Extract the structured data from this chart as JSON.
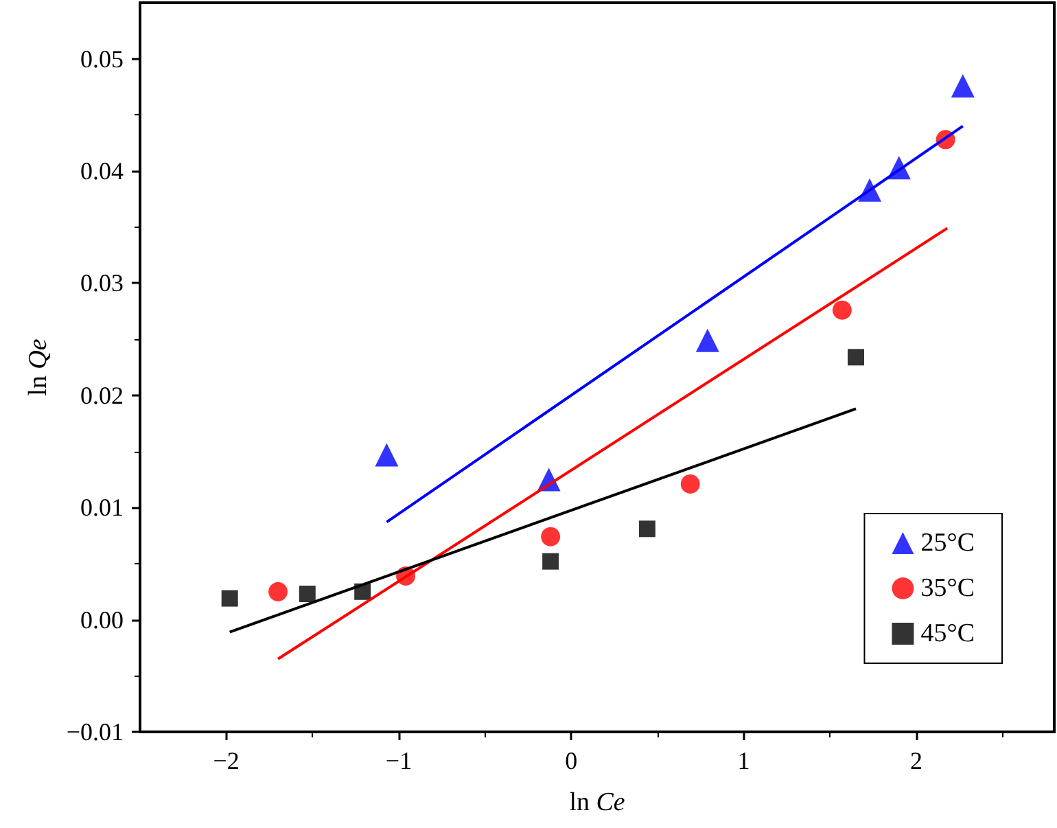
{
  "chart_data": {
    "type": "scatter",
    "xlabel": "ln Ce",
    "ylabel": "ln Qe",
    "xlim": [
      -2.5,
      2.8
    ],
    "xticks": [
      {
        "value": -2,
        "label": "−2"
      },
      {
        "value": -1,
        "label": "−1"
      },
      0,
      1,
      2
    ],
    "ylim": [
      -0.01,
      0.055
    ],
    "yticks": [
      {
        "value": -0.01,
        "label": "−0.01"
      },
      {
        "value": 0,
        "label": "0.00"
      },
      0.01,
      0.02,
      0.03,
      0.04,
      0.05
    ],
    "grid": false,
    "legend": "bottom right",
    "series": [
      {
        "name": "25°C",
        "color": "#0000ff",
        "marker": "triangle",
        "x": [
          -1.07,
          -0.13,
          0.79,
          1.73,
          1.9,
          2.27
        ],
        "values": [
          0.0147,
          0.0125,
          0.0249,
          0.0383,
          0.0403,
          0.0476
        ]
      },
      {
        "name": "35°C",
        "color": "#ff0000",
        "marker": "circle",
        "x": [
          -1.7,
          -0.96,
          -0.12,
          0.69,
          1.57,
          2.17
        ],
        "values": [
          0.0025,
          0.0039,
          0.0074,
          0.0121,
          0.0276,
          0.0428
        ]
      },
      {
        "name": "45°C",
        "color": "#000000",
        "marker": "square",
        "x": [
          -1.98,
          -1.53,
          -1.21,
          -0.12,
          0.44,
          1.65
        ],
        "values": [
          0.0019,
          0.0023,
          0.0025,
          0.0052,
          0.0081,
          0.0234
        ]
      },
      {
        "type": "line",
        "color": "#0000ff",
        "marker": "none",
        "x": [
          -1.07,
          2.27
        ],
        "values": [
          0.0087,
          0.044
        ]
      },
      {
        "type": "line",
        "color": "#ff0000",
        "marker": "none",
        "x": [
          -1.7,
          2.18
        ],
        "values": [
          -0.0035,
          0.0349
        ]
      },
      {
        "type": "line",
        "color": "#000000",
        "marker": "none",
        "x": [
          -1.98,
          1.65
        ],
        "values": [
          -0.0011,
          0.0188
        ]
      }
    ]
  }
}
